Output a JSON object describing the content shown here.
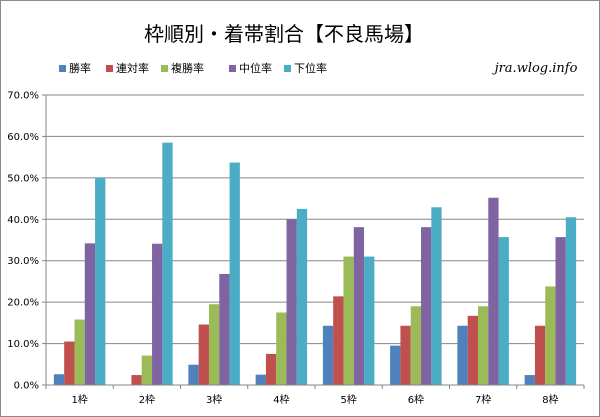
{
  "chart_data": {
    "type": "bar",
    "title": "枠順別・着帯割合【不良馬場】",
    "watermark": "jra.wlog.info",
    "categories": [
      "1枠",
      "2枠",
      "3枠",
      "4枠",
      "5枠",
      "6枠",
      "7枠",
      "8枠"
    ],
    "series": [
      {
        "name": "勝率",
        "color": "#4f81bd",
        "values": [
          2.6,
          0.0,
          4.9,
          2.5,
          14.3,
          9.5,
          14.3,
          2.4
        ]
      },
      {
        "name": "連対率",
        "color": "#c0504d",
        "values": [
          10.5,
          2.4,
          14.6,
          7.5,
          21.4,
          14.3,
          16.7,
          14.3
        ]
      },
      {
        "name": "複勝率",
        "color": "#9bbb59",
        "values": [
          15.8,
          7.1,
          19.5,
          17.5,
          31.0,
          19.0,
          19.0,
          23.8
        ]
      },
      {
        "name": "中位率",
        "color": "#8064a2",
        "values": [
          34.2,
          34.1,
          26.8,
          40.0,
          38.1,
          38.1,
          45.2,
          35.7
        ]
      },
      {
        "name": "下位率",
        "color": "#4bacc6",
        "values": [
          50.0,
          58.5,
          53.7,
          42.5,
          31.0,
          42.9,
          35.7,
          40.5
        ]
      }
    ],
    "yticks": [
      "0.0%",
      "10.0%",
      "20.0%",
      "30.0%",
      "40.0%",
      "50.0%",
      "60.0%",
      "70.0%"
    ],
    "ylim": [
      0,
      70
    ],
    "grid": true,
    "legend": "top-left"
  }
}
